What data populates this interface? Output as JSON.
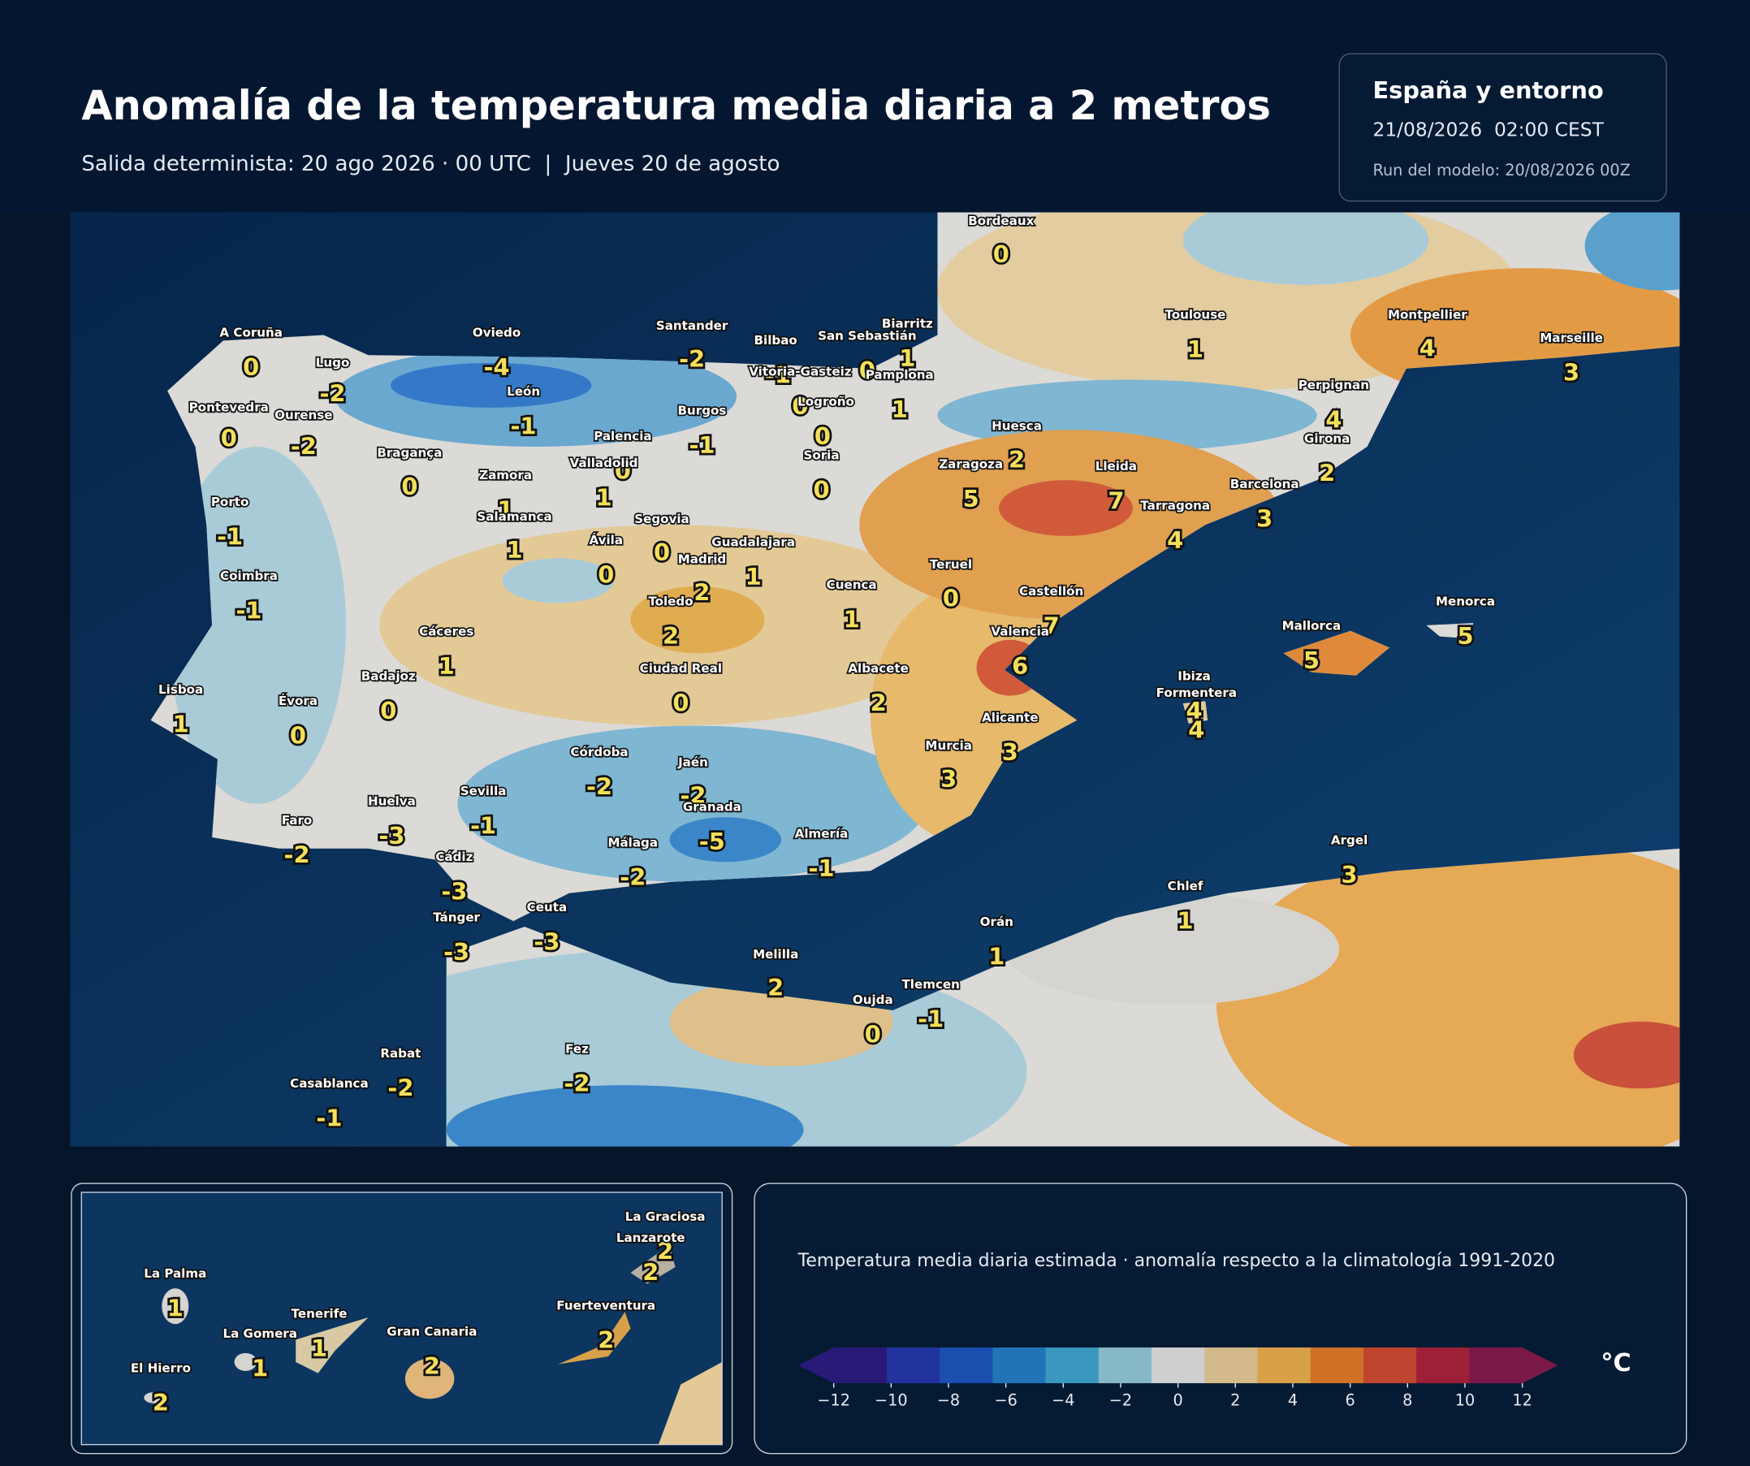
{
  "header": {
    "title": "Anomalía de la temperatura media diaria a 2 metros",
    "subtitle": "Salida determinista: 20 ago 2026 · 00 UTC  |  Jueves 20 de agosto"
  },
  "info": {
    "region": "España y entorno",
    "valid": "21/08/2026  02:00 CEST",
    "run": "Run del modelo: 20/08/2026 00Z"
  },
  "map": {
    "cities": [
      {
        "name": "Bordeaux",
        "value": 0
      },
      {
        "name": "Toulouse",
        "value": 1
      },
      {
        "name": "Montpellier",
        "value": 4
      },
      {
        "name": "Marseille",
        "value": 3
      },
      {
        "name": "Perpignan",
        "value": 4
      },
      {
        "name": "Girona",
        "value": 2
      },
      {
        "name": "Barcelona",
        "value": 3
      },
      {
        "name": "Tarragona",
        "value": 4
      },
      {
        "name": "Lleida",
        "value": 7
      },
      {
        "name": "Huesca",
        "value": 2
      },
      {
        "name": "Zaragoza",
        "value": 5
      },
      {
        "name": "Biarritz",
        "value": 1
      },
      {
        "name": "San Sebastián",
        "value": 0
      },
      {
        "name": "Pamplona",
        "value": 1
      },
      {
        "name": "Bilbao",
        "value": -1
      },
      {
        "name": "Vitoria-Gasteiz",
        "value": 0
      },
      {
        "name": "Logroño",
        "value": 0
      },
      {
        "name": "Santander",
        "value": -2
      },
      {
        "name": "Oviedo",
        "value": -4
      },
      {
        "name": "A Coruña",
        "value": 0
      },
      {
        "name": "Lugo",
        "value": -2
      },
      {
        "name": "Pontevedra",
        "value": 0
      },
      {
        "name": "Ourense",
        "value": -2
      },
      {
        "name": "León",
        "value": -1
      },
      {
        "name": "Burgos",
        "value": -1
      },
      {
        "name": "Palencia",
        "value": 0
      },
      {
        "name": "Valladolid",
        "value": 1
      },
      {
        "name": "Soria",
        "value": 0
      },
      {
        "name": "Bragança",
        "value": 0
      },
      {
        "name": "Zamora",
        "value": 1
      },
      {
        "name": "Salamanca",
        "value": 1
      },
      {
        "name": "Segovia",
        "value": 0
      },
      {
        "name": "Ávila",
        "value": 0
      },
      {
        "name": "Madrid",
        "value": 2
      },
      {
        "name": "Guadalajara",
        "value": 1
      },
      {
        "name": "Porto",
        "value": -1
      },
      {
        "name": "Coimbra",
        "value": -1
      },
      {
        "name": "Toledo",
        "value": 2
      },
      {
        "name": "Cuenca",
        "value": 1
      },
      {
        "name": "Teruel",
        "value": 0
      },
      {
        "name": "Castellón",
        "value": 7
      },
      {
        "name": "Valencia",
        "value": 6
      },
      {
        "name": "Cáceres",
        "value": 1
      },
      {
        "name": "Badajoz",
        "value": 0
      },
      {
        "name": "Lisboa",
        "value": 1
      },
      {
        "name": "Évora",
        "value": 0
      },
      {
        "name": "Ciudad Real",
        "value": 0
      },
      {
        "name": "Albacete",
        "value": 2
      },
      {
        "name": "Alicante",
        "value": 3
      },
      {
        "name": "Murcia",
        "value": 3
      },
      {
        "name": "Córdoba",
        "value": -2
      },
      {
        "name": "Jaén",
        "value": -2
      },
      {
        "name": "Granada",
        "value": -5
      },
      {
        "name": "Huelva",
        "value": -3
      },
      {
        "name": "Sevilla",
        "value": -1
      },
      {
        "name": "Faro",
        "value": -2
      },
      {
        "name": "Almería",
        "value": -1
      },
      {
        "name": "Málaga",
        "value": -2
      },
      {
        "name": "Cádiz",
        "value": -3
      },
      {
        "name": "Tánger",
        "value": -3
      },
      {
        "name": "Ceuta",
        "value": -3
      },
      {
        "name": "Melilla",
        "value": 2
      },
      {
        "name": "Orán",
        "value": 1
      },
      {
        "name": "Chlef",
        "value": 1
      },
      {
        "name": "Argel",
        "value": 3
      },
      {
        "name": "Oujda",
        "value": 0
      },
      {
        "name": "Tlemcen",
        "value": -1
      },
      {
        "name": "Rabat",
        "value": -2
      },
      {
        "name": "Fez",
        "value": -2
      },
      {
        "name": "Casablanca",
        "value": -1
      },
      {
        "name": "Mallorca",
        "value": 5
      },
      {
        "name": "Menorca",
        "value": 5
      },
      {
        "name": "Ibiza",
        "value": 4
      },
      {
        "name": "Formentera",
        "value": 4
      }
    ]
  },
  "inset": {
    "islands": [
      {
        "name": "La Graciosa",
        "value": 2
      },
      {
        "name": "Lanzarote",
        "value": 2
      },
      {
        "name": "La Palma",
        "value": 1
      },
      {
        "name": "Tenerife",
        "value": 1
      },
      {
        "name": "La Gomera",
        "value": 1
      },
      {
        "name": "Gran Canaria",
        "value": 2
      },
      {
        "name": "Fuerteventura",
        "value": 2
      },
      {
        "name": "El Hierro",
        "value": 2
      }
    ]
  },
  "legend": {
    "caption": "Temperatura media diaria estimada · anomalía respecto a la climatología 1991-2020",
    "unit": "°C",
    "range": [
      -12,
      12
    ],
    "ticks": [
      {
        "value": -12,
        "label": "−12"
      },
      {
        "value": -10,
        "label": "−10"
      },
      {
        "value": -8,
        "label": "−8"
      },
      {
        "value": -6,
        "label": "−6"
      },
      {
        "value": -4,
        "label": "−4"
      },
      {
        "value": -2,
        "label": "−2"
      },
      0,
      2,
      4,
      6,
      8,
      10,
      12
    ],
    "colors": [
      "#2a1a78",
      "#2233a0",
      "#1a4fb0",
      "#2274b8",
      "#3a98c0",
      "#86b8c8",
      "#cfcfcf",
      "#d4b98a",
      "#d9a04a",
      "#cf7228",
      "#c0452e",
      "#9e2038",
      "#7a1848"
    ]
  }
}
